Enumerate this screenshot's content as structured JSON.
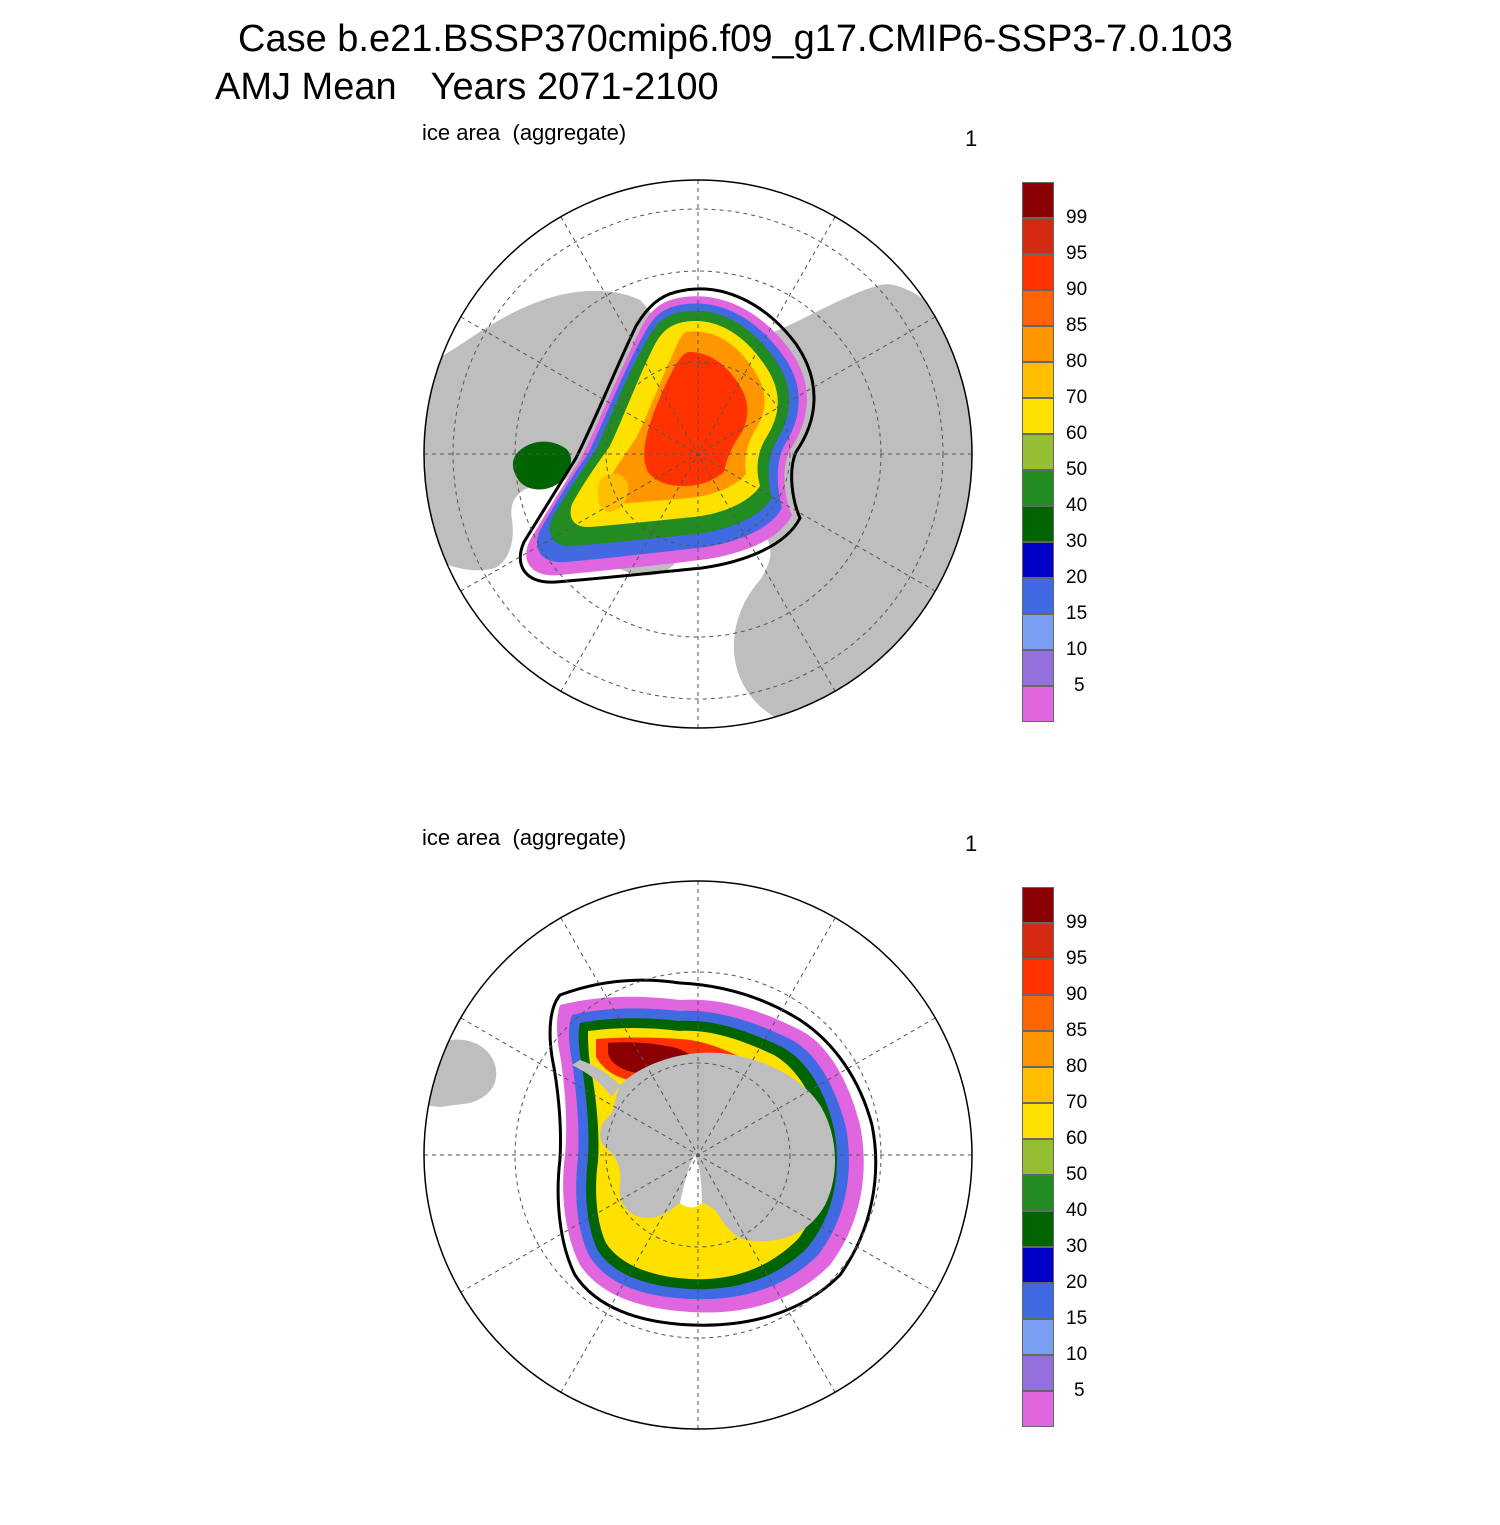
{
  "title_line1": "Case b.e21.BSSP370cmip6.f09_g17.CMIP6-SSP3-7.0.103",
  "title_season": "AMJ Mean",
  "title_years": "Years 2071-2100",
  "panels": [
    {
      "label": "ice area  (aggregate)",
      "number": "1",
      "hemisphere": "north"
    },
    {
      "label": "ice area  (aggregate)",
      "number": "1",
      "hemisphere": "south"
    }
  ],
  "colorbar": {
    "labels": [
      "99",
      "95",
      "90",
      "85",
      "80",
      "70",
      "60",
      "50",
      "40",
      "30",
      "20",
      "15",
      "10",
      "5"
    ],
    "colors": [
      "#8b0000",
      "#d52a10",
      "#ff3200",
      "#ff6400",
      "#ff9600",
      "#ffbe00",
      "#ffe100",
      "#96be32",
      "#228b22",
      "#006400",
      "#0000c8",
      "#4169e1",
      "#7a9ef0",
      "#9370db",
      "#e066e0"
    ]
  },
  "land_color": "#bebebe",
  "ice_edge_color": "#000000"
}
